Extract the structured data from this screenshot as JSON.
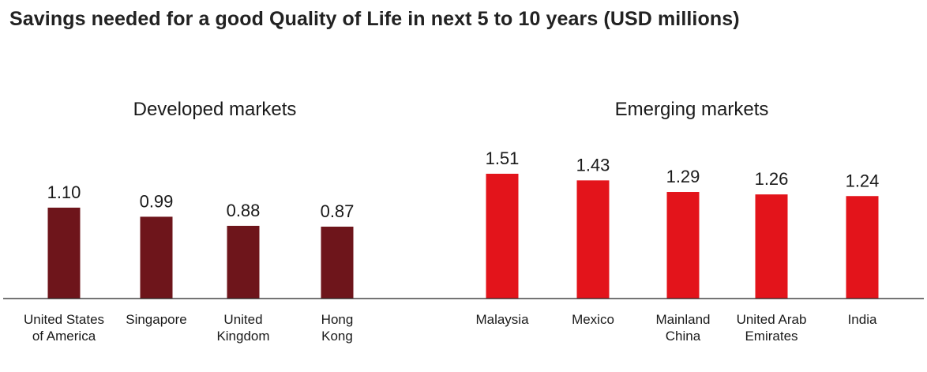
{
  "chart_data": {
    "type": "bar",
    "title": "Savings needed for a good Quality of Life in next 5 to 10 years (USD millions)",
    "groups": [
      {
        "name": "Developed markets",
        "color": "#6e151b",
        "categories": [
          [
            "United States",
            "of America"
          ],
          [
            "Singapore"
          ],
          [
            "United",
            "Kingdom"
          ],
          [
            "Hong",
            "Kong"
          ]
        ],
        "values": [
          1.1,
          0.99,
          0.88,
          0.87
        ],
        "labels": [
          "1.10",
          "0.99",
          "0.88",
          "0.87"
        ]
      },
      {
        "name": "Emerging markets",
        "color": "#e3141b",
        "categories": [
          [
            "Malaysia"
          ],
          [
            "Mexico"
          ],
          [
            "Mainland",
            "China"
          ],
          [
            "United Arab",
            "Emirates"
          ],
          [
            "India"
          ]
        ],
        "values": [
          1.51,
          1.43,
          1.29,
          1.26,
          1.24
        ],
        "labels": [
          "1.51",
          "1.43",
          "1.29",
          "1.26",
          "1.24"
        ]
      }
    ],
    "ylim": [
      0,
      1.51
    ],
    "grid": false,
    "legend": "none"
  }
}
